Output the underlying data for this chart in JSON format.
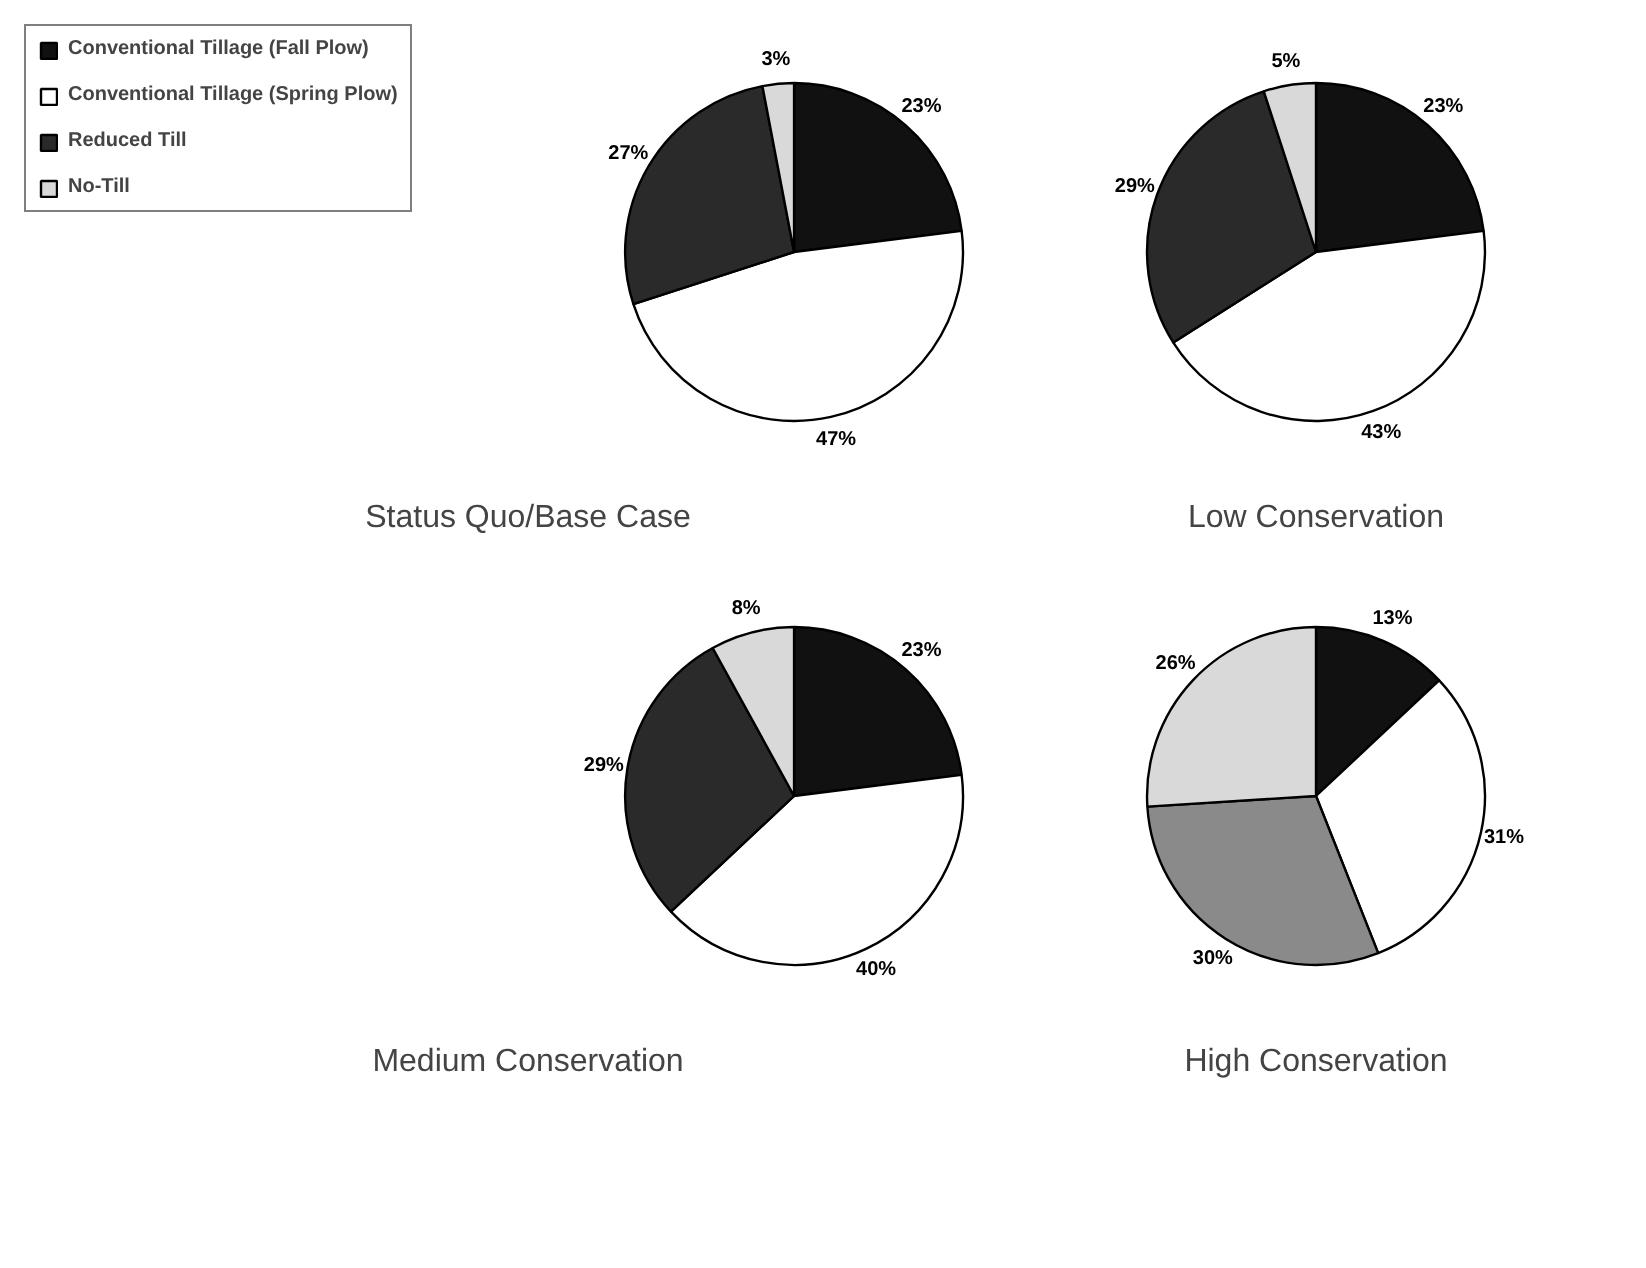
{
  "chart_data": [
    {
      "type": "pie",
      "title": "Status Quo/Base Case",
      "categories": [
        "Conventional Tillage (Fall Plow)",
        "Conventional Tillage (Spring Plow)",
        "Reduced Till",
        "No-Till"
      ],
      "values": [
        23,
        47,
        27,
        3
      ],
      "colors": [
        "#111111",
        "#ffffff",
        "#2a2a2a",
        "#d9d9d9"
      ],
      "value_labels": [
        "23%",
        "47%",
        "27%",
        "3%"
      ],
      "legend": "left"
    },
    {
      "type": "pie",
      "title": "Low Conservation",
      "categories": [
        null,
        null,
        null,
        null
      ],
      "values": [
        23,
        43,
        29,
        5
      ],
      "colors": [
        "#111111",
        "#ffffff",
        "#2a2a2a",
        "#d9d9d9"
      ],
      "value_labels": [
        "23%",
        "43%",
        "29%",
        "5%"
      ]
    },
    {
      "type": "pie",
      "title": "Medium Conservation",
      "categories": [
        null,
        null,
        null,
        null
      ],
      "values": [
        23,
        40,
        29,
        8
      ],
      "colors": [
        "#111111",
        "#ffffff",
        "#2a2a2a",
        "#d9d9d9"
      ],
      "value_labels": [
        "23%",
        "40%",
        "29%",
        "8%"
      ]
    },
    {
      "type": "pie",
      "title": "High Conservation",
      "categories": [
        null,
        null,
        null,
        null
      ],
      "values": [
        13,
        31,
        30,
        26
      ],
      "colors": [
        "#111111",
        "#ffffff",
        "#8a8a8a",
        "#d9d9d9"
      ],
      "value_labels": [
        "13%",
        "31%",
        "30%",
        "26%"
      ]
    }
  ]
}
